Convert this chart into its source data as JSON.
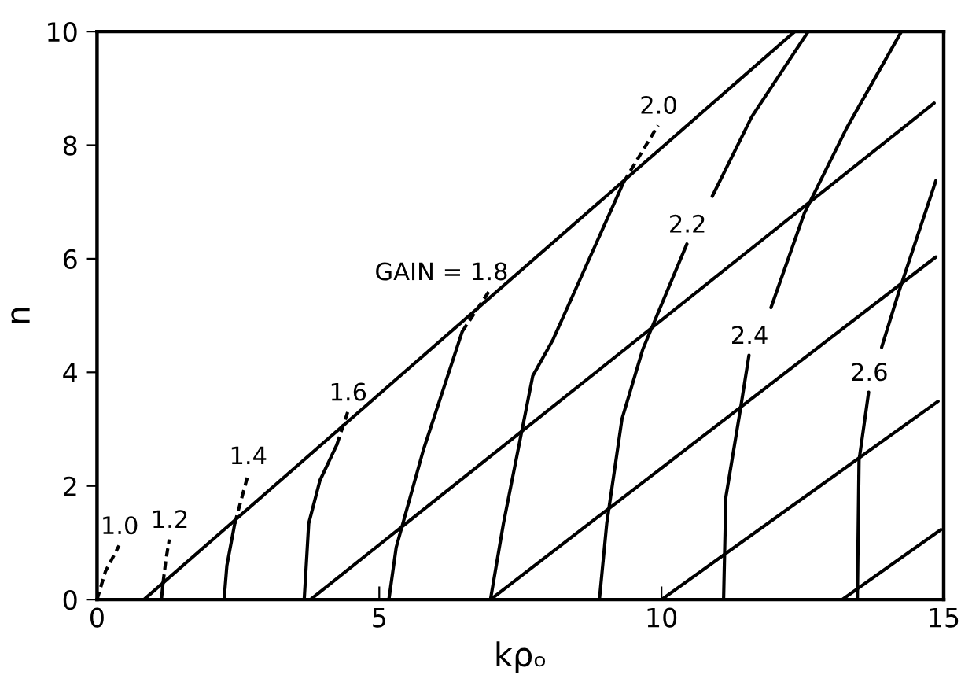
{
  "chart_data": {
    "type": "line",
    "xlabel": "kρₒ",
    "ylabel": "n",
    "xlim": [
      0,
      15
    ],
    "ylim": [
      0,
      10
    ],
    "xticks": [
      0,
      5,
      10,
      15
    ],
    "yticks": [
      0,
      2,
      4,
      6,
      8,
      10
    ],
    "grid": false,
    "marker": "none",
    "series": [
      {
        "color": "#000000",
        "line_style": "solid",
        "x": [
          0.83,
          12.36
        ],
        "values": [
          0,
          10
        ]
      },
      {
        "color": "#000000",
        "line_style": "solid",
        "x": [
          3.78,
          14.83
        ],
        "values": [
          0,
          8.74
        ]
      },
      {
        "color": "#000000",
        "line_style": "solid",
        "x": [
          6.97,
          14.86
        ],
        "values": [
          0,
          6.03
        ]
      },
      {
        "color": "#000000",
        "line_style": "solid",
        "x": [
          10.0,
          14.9
        ],
        "values": [
          0,
          3.49
        ]
      },
      {
        "color": "#000000",
        "line_style": "solid",
        "x": [
          13.2,
          14.95
        ],
        "values": [
          0,
          1.23
        ]
      },
      {
        "color": "#000000",
        "line_style": "dashed",
        "x": [
          0,
          0.15,
          0.39
        ],
        "values": [
          0,
          0.5,
          0.95
        ]
      },
      {
        "color": "#000000",
        "line_style": "solid",
        "x": [
          1.14,
          1.17
        ],
        "values": [
          0,
          0.3
        ]
      },
      {
        "color": "#000000",
        "line_style": "dashed",
        "x": [
          1.17,
          1.22,
          1.28
        ],
        "values": [
          0.3,
          0.7,
          1.06
        ]
      },
      {
        "color": "#000000",
        "line_style": "solid",
        "x": [
          2.25,
          2.3,
          2.44
        ],
        "values": [
          0,
          0.6,
          1.34
        ]
      },
      {
        "color": "#000000",
        "line_style": "dashed",
        "x": [
          2.44,
          2.67
        ],
        "values": [
          1.34,
          2.18
        ]
      },
      {
        "color": "#000000",
        "line_style": "solid",
        "x": [
          3.67,
          3.75,
          3.95,
          4.25
        ],
        "values": [
          0,
          1.34,
          2.1,
          2.73
        ]
      },
      {
        "color": "#000000",
        "line_style": "dashed",
        "x": [
          4.25,
          4.44
        ],
        "values": [
          2.73,
          3.3
        ]
      },
      {
        "color": "#000000",
        "line_style": "solid",
        "x": [
          5.17,
          5.3,
          5.78,
          6.47
        ],
        "values": [
          0,
          0.92,
          2.63,
          4.72
        ]
      },
      {
        "color": "#000000",
        "line_style": "dashed",
        "x": [
          6.47,
          6.94
        ],
        "values": [
          4.72,
          5.42
        ]
      },
      {
        "color": "#000000",
        "line_style": "solid",
        "x": [
          6.97,
          7.2,
          7.72,
          8.08,
          9.33
        ],
        "values": [
          0,
          1.34,
          3.94,
          4.58,
          7.35
        ]
      },
      {
        "color": "#000000",
        "line_style": "dashed",
        "x": [
          9.33,
          9.94
        ],
        "values": [
          7.35,
          8.35
        ]
      },
      {
        "color": "#000000",
        "line_style": "solid",
        "x": [
          8.9,
          9.03,
          9.3,
          9.67,
          10.45,
          10.68,
          10.9,
          11.6,
          12.6
        ],
        "values": [
          0,
          1.34,
          3.18,
          4.41,
          6.26,
          null,
          7.1,
          8.5,
          10
        ]
      },
      {
        "color": "#000000",
        "line_style": "solid",
        "x": [
          11.1,
          11.14,
          11.39,
          11.55,
          11.75,
          11.94,
          12.53,
          13.28,
          14.25
        ],
        "values": [
          0,
          1.8,
          3.3,
          4.3,
          null,
          5.14,
          6.8,
          8.3,
          10
        ]
      },
      {
        "color": "#000000",
        "line_style": "solid",
        "x": [
          13.47,
          13.5,
          13.67,
          13.8,
          13.9,
          14.2,
          14.86
        ],
        "values": [
          0,
          2.45,
          3.65,
          null,
          4.44,
          5.4,
          7.37
        ]
      }
    ],
    "annotations": [
      {
        "text": "1.0",
        "x": 0.39,
        "y": 0.95
      },
      {
        "text": "1.2",
        "x": 1.28,
        "y": 1.06
      },
      {
        "text": "1.4",
        "x": 2.67,
        "y": 2.18
      },
      {
        "text": "1.6",
        "x": 4.44,
        "y": 3.3
      },
      {
        "text": "GAIN = 1.8",
        "x": 6.94,
        "y": 5.42
      },
      {
        "text": "2.0",
        "x": 9.94,
        "y": 8.35
      },
      {
        "text": "2.2",
        "x": 10.45,
        "y": 6.26
      },
      {
        "text": "2.4",
        "x": 11.55,
        "y": 4.3
      },
      {
        "text": "2.6",
        "x": 13.67,
        "y": 3.65
      }
    ]
  }
}
